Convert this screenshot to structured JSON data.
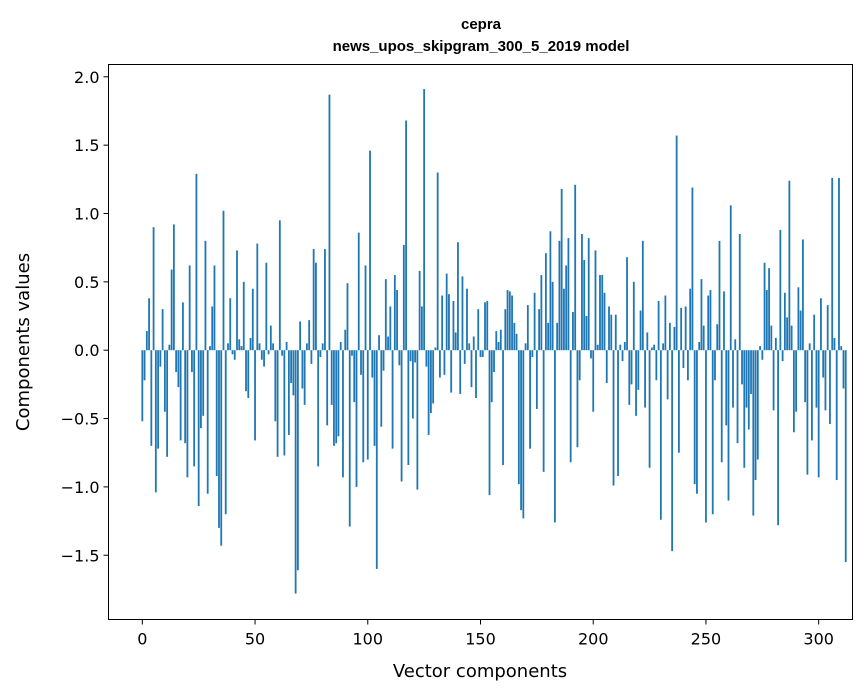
{
  "chart_data": {
    "type": "bar",
    "title": "cepra",
    "subtitle": "news_upos_skipgram_300_5_2019 model",
    "xlabel": "Vector components",
    "ylabel": "Components values",
    "xlim": [
      -15,
      315
    ],
    "ylim": [
      -1.97,
      2.09
    ],
    "xticks": [
      0,
      50,
      100,
      150,
      200,
      250,
      300
    ],
    "xtick_labels": [
      "0",
      "50",
      "100",
      "150",
      "200",
      "250",
      "300"
    ],
    "yticks": [
      -1.5,
      -1.0,
      -0.5,
      0.0,
      0.5,
      1.0,
      1.5,
      2.0
    ],
    "ytick_labels": [
      "−1.5",
      "−1.0",
      "−0.5",
      "0.0",
      "0.5",
      "1.0",
      "1.5",
      "2.0"
    ],
    "bar_color": "#1f77b4",
    "values": [
      -0.52,
      -0.22,
      0.14,
      0.38,
      -0.7,
      0.9,
      -1.04,
      -0.72,
      -0.12,
      0.3,
      -0.45,
      -0.78,
      0.04,
      0.59,
      0.92,
      -0.16,
      -0.27,
      -0.66,
      0.35,
      -0.68,
      -0.93,
      0.62,
      -0.16,
      -0.85,
      1.29,
      -1.14,
      -0.57,
      -0.48,
      0.8,
      -1.05,
      0.03,
      0.32,
      0.62,
      -0.92,
      -1.3,
      -1.43,
      1.02,
      -1.2,
      0.05,
      0.38,
      -0.03,
      -0.07,
      0.73,
      0.08,
      0.03,
      0.5,
      -0.3,
      -0.35,
      0.09,
      0.45,
      -0.66,
      0.78,
      0.05,
      -0.07,
      -0.12,
      0.64,
      -0.03,
      0.18,
      0.05,
      -0.52,
      -0.78,
      0.95,
      -0.04,
      -0.77,
      0.06,
      -0.62,
      -0.24,
      -0.33,
      -1.78,
      -1.61,
      0.21,
      -0.28,
      -0.4,
      0.05,
      0.22,
      -0.1,
      0.74,
      0.64,
      -0.85,
      -0.05,
      0.05,
      0.74,
      -0.55,
      1.87,
      -0.4,
      -0.7,
      -0.68,
      -0.63,
      0.06,
      -0.93,
      0.15,
      0.49,
      -1.29,
      -0.04,
      -0.38,
      -1.0,
      0.86,
      -0.18,
      -0.82,
      0.62,
      -0.8,
      1.46,
      -0.2,
      -0.7,
      -1.6,
      0.11,
      -0.56,
      -0.15,
      0.52,
      0.1,
      0.32,
      -0.72,
      0.55,
      0.44,
      -0.11,
      -0.96,
      0.77,
      1.68,
      -0.84,
      -0.08,
      -0.5,
      -0.09,
      -1.02,
      0.58,
      0.32,
      1.91,
      -0.12,
      -0.62,
      -0.46,
      -0.39,
      0.02,
      1.3,
      -0.2,
      0.4,
      -0.18,
      0.56,
      0.41,
      -0.31,
      0.36,
      0.13,
      0.79,
      -0.32,
      0.54,
      -0.1,
      0.45,
      0.05,
      -0.27,
      0.1,
      -0.35,
      0.3,
      -0.05,
      -0.05,
      0.35,
      0.36,
      -1.06,
      -0.38,
      -0.16,
      0.14,
      0.06,
      0.15,
      -0.84,
      0.3,
      0.44,
      0.43,
      0.4,
      0.2,
      0.12,
      -0.98,
      -1.17,
      -1.23,
      0.05,
      0.33,
      -0.72,
      -0.05,
      0.42,
      -0.43,
      0.3,
      0.55,
      -0.89,
      0.71,
      0.2,
      0.87,
      0.5,
      -1.26,
      0.2,
      0.8,
      1.18,
      0.45,
      0.62,
      0.82,
      -0.82,
      0.28,
      1.21,
      -0.71,
      -0.22,
      0.85,
      0.66,
      0.25,
      0.82,
      -0.06,
      -0.45,
      0.73,
      0.04,
      0.55,
      0.55,
      0.42,
      -0.24,
      0.32,
      0.26,
      -0.99,
      0.26,
      -0.92,
      0.04,
      -0.08,
      0.06,
      0.68,
      -0.4,
      -0.25,
      0.5,
      -0.48,
      -0.29,
      0.29,
      0.8,
      -0.42,
      0.13,
      -0.86,
      0.02,
      0.04,
      -0.22,
      0.36,
      -1.24,
      0.05,
      0.4,
      -0.36,
      0.2,
      -1.47,
      0.17,
      1.57,
      -0.75,
      0.31,
      -0.13,
      0.32,
      -0.22,
      0.45,
      1.19,
      -0.98,
      -1.05,
      0.06,
      0.52,
      0.18,
      -1.26,
      0.4,
      0.44,
      -1.2,
      -0.22,
      0.19,
      0.8,
      -0.82,
      0.43,
      -0.55,
      -1.1,
      1.06,
      -0.42,
      0.08,
      -0.68,
      0.85,
      -0.25,
      -0.86,
      -0.42,
      -0.58,
      -0.32,
      -1.21,
      -0.95,
      -0.8,
      0.03,
      -0.07,
      0.64,
      0.44,
      0.6,
      0.18,
      -0.44,
      0.09,
      -1.28,
      0.88,
      -0.08,
      0.42,
      0.24,
      1.24,
      0.18,
      -0.6,
      -0.45,
      0.46,
      0.29,
      0.81,
      -0.38,
      -0.91,
      0.05,
      -0.66,
      0.26,
      -0.42,
      -0.93,
      0.38,
      -0.2,
      -0.44,
      0.33,
      -0.54,
      1.26,
      0.09,
      -0.95,
      1.26,
      0.03,
      -0.28,
      -1.55
    ]
  }
}
